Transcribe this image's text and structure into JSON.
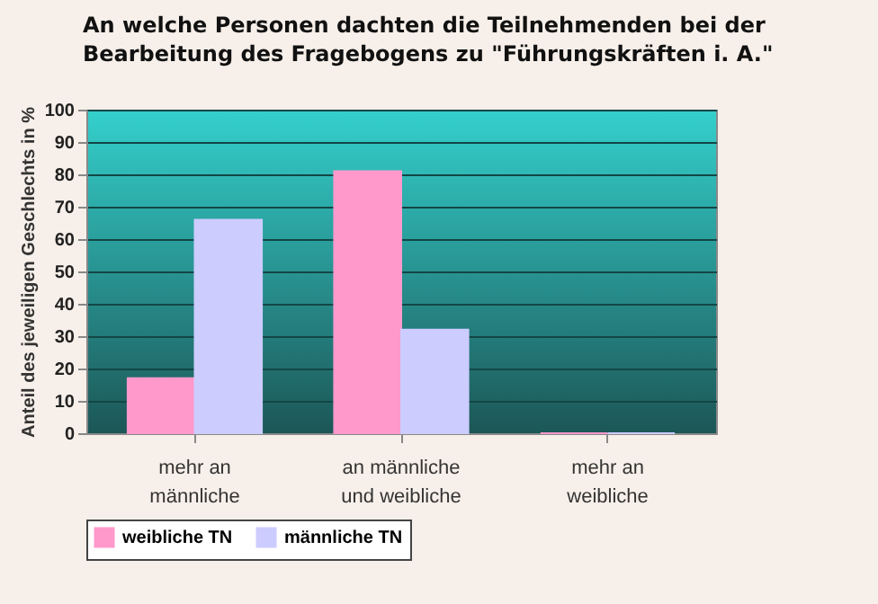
{
  "chart_data": {
    "type": "bar",
    "title": "An welche Personen dachten die Teilnehmenden bei der Bearbeitung des Fragebogens zu \"Führungskräften i. A.\"",
    "ylabel": "Anteil des jeweiligen Geschlechts in %",
    "categories": [
      "mehr an\nmännliche",
      "an männliche\nund weibliche",
      "mehr an\nweibliche"
    ],
    "series": [
      {
        "name": "weibliche TN",
        "color": "#ff99cc",
        "values": [
          17,
          81,
          0
        ]
      },
      {
        "name": "männliche TN",
        "color": "#ccccff",
        "values": [
          66,
          32,
          0
        ]
      }
    ],
    "ylim": [
      0,
      100
    ],
    "yticks": [
      0,
      10,
      20,
      30,
      40,
      50,
      60,
      70,
      80,
      90,
      100
    ],
    "grid": "y",
    "legend": "bottom"
  }
}
